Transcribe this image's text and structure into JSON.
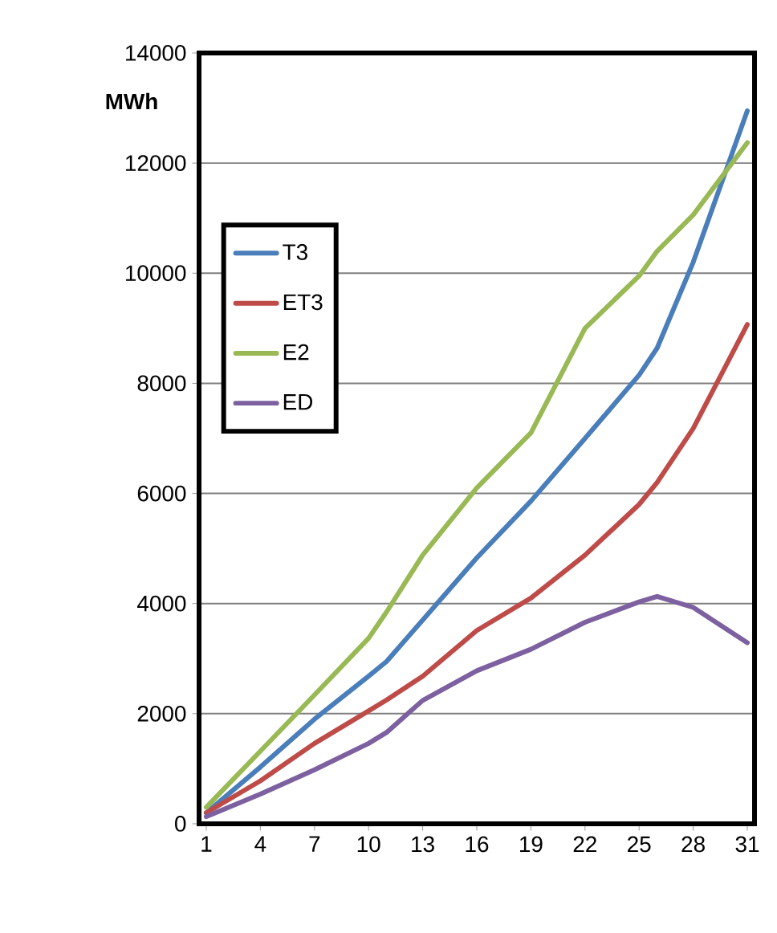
{
  "chart_data": {
    "type": "line",
    "ylabel": "MWh",
    "x": [
      1,
      4,
      7,
      10,
      11,
      13,
      16,
      19,
      22,
      25,
      26,
      28,
      31
    ],
    "series": [
      {
        "name": "T3",
        "color": "#4a7ebb",
        "values": [
          200,
          1030,
          1900,
          2680,
          2950,
          3700,
          4830,
          5860,
          7000,
          8150,
          8640,
          10200,
          12950
        ]
      },
      {
        "name": "ET3",
        "color": "#be4b48",
        "values": [
          200,
          780,
          1460,
          2050,
          2250,
          2680,
          3510,
          4100,
          4880,
          5800,
          6200,
          7180,
          9070
        ]
      },
      {
        "name": "E2",
        "color": "#98b954",
        "values": [
          300,
          1320,
          2340,
          3370,
          3850,
          4880,
          6100,
          7100,
          9000,
          9950,
          10400,
          11060,
          12370
        ]
      },
      {
        "name": "ED",
        "color": "#7d60a0",
        "values": [
          130,
          540,
          980,
          1460,
          1660,
          2240,
          2780,
          3170,
          3660,
          4030,
          4130,
          3930,
          3290
        ]
      }
    ],
    "xlim": [
      0.6,
      31.4
    ],
    "xticks": [
      1,
      4,
      7,
      10,
      13,
      16,
      19,
      22,
      25,
      28,
      31
    ],
    "ylim": [
      0,
      14000
    ],
    "yticks": [
      0,
      2000,
      4000,
      6000,
      8000,
      10000,
      12000,
      14000
    ],
    "grid": "y",
    "legend": "center left",
    "marker": "none",
    "line_style": "solid"
  }
}
